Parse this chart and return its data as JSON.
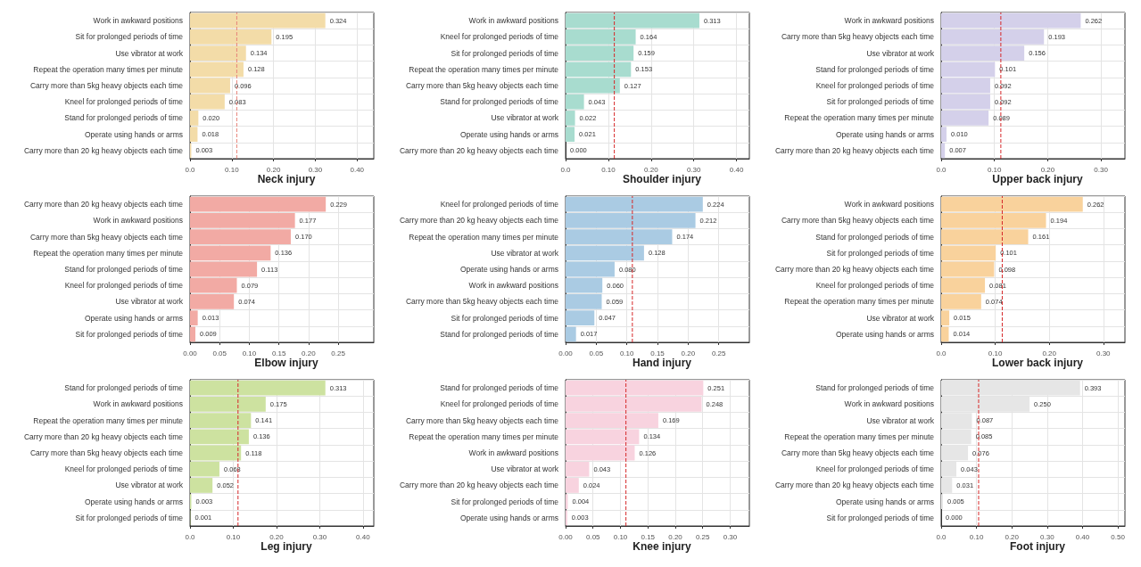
{
  "chart_data": [
    {
      "type": "bar",
      "orientation": "horizontal",
      "title": "Neck injury",
      "color": "#f3dca8",
      "grid": true,
      "categories": [
        "Work in awkward positions",
        "Sit for prolonged periods of time",
        "Use vibrator at work",
        "Repeat the operation many times per minute",
        "Carry more than 5kg heavy objects each time",
        "Kneel for prolonged periods of time",
        "Stand for prolonged periods of time",
        "Operate using hands or arms",
        "Carry more than 20 kg heavy objects each time"
      ],
      "values": [
        0.324,
        0.195,
        0.134,
        0.128,
        0.096,
        0.083,
        0.02,
        0.018,
        0.003
      ],
      "value_labels": [
        "0.324",
        "0.195",
        "0.134",
        "0.128",
        "0.096",
        "0.083",
        "0.020",
        "0.018",
        "0.003"
      ],
      "xlim": [
        0,
        0.44
      ],
      "xticks": [
        {
          "value": 0,
          "label": "0.0"
        },
        {
          "value": 0.1,
          "label": "0.10"
        },
        {
          "value": 0.2,
          "label": "0.20"
        },
        {
          "value": 0.3,
          "label": "0.30"
        },
        {
          "value": 0.4,
          "label": "0.40"
        }
      ],
      "ref_lines": [
        {
          "axis": "x",
          "value": 0.112,
          "color": "#e8837a",
          "line_style": "dashed"
        }
      ]
    },
    {
      "type": "bar",
      "orientation": "horizontal",
      "title": "Shoulder injury",
      "color": "#a8dccf",
      "grid": true,
      "categories": [
        "Work in awkward positions",
        "Kneel for prolonged periods of time",
        "Sit for prolonged periods of time",
        "Repeat the operation many times per minute",
        "Carry more than 5kg heavy objects each time",
        "Stand for prolonged periods of time",
        "Use vibrator at work",
        "Operate using hands or arms",
        "Carry more than 20 kg heavy objects each time"
      ],
      "values": [
        0.313,
        0.164,
        0.159,
        0.153,
        0.127,
        0.043,
        0.022,
        0.021,
        0.0
      ],
      "value_labels": [
        "0.313",
        "0.164",
        "0.159",
        "0.153",
        "0.127",
        "0.043",
        "0.022",
        "0.021",
        "0.000"
      ],
      "xlim": [
        0,
        0.43
      ],
      "xticks": [
        {
          "value": 0,
          "label": "0.0"
        },
        {
          "value": 0.1,
          "label": "0.10"
        },
        {
          "value": 0.2,
          "label": "0.20"
        },
        {
          "value": 0.3,
          "label": "0.30"
        },
        {
          "value": 0.4,
          "label": "0.40"
        }
      ],
      "ref_lines": [
        {
          "axis": "x",
          "value": 0.114,
          "color": "#d62728",
          "line_style": "dashed"
        }
      ]
    },
    {
      "type": "bar",
      "orientation": "horizontal",
      "title": "Upper back injury",
      "color": "#d4d0ea",
      "grid": true,
      "categories": [
        "Work in awkward positions",
        "Carry more than 5kg heavy objects each time",
        "Use vibrator at work",
        "Stand for prolonged periods of time",
        "Kneel for prolonged periods of time",
        "Sit for prolonged periods of time",
        "Repeat the operation many times per minute",
        "Operate using hands or arms",
        "Carry more than 20 kg heavy objects each time"
      ],
      "values": [
        0.262,
        0.193,
        0.156,
        0.101,
        0.092,
        0.092,
        0.089,
        0.01,
        0.007
      ],
      "value_labels": [
        "0.262",
        "0.193",
        "0.156",
        "0.101",
        "0.092",
        "0.092",
        "0.089",
        "0.010",
        "0.007"
      ],
      "xlim": [
        0,
        0.345
      ],
      "xticks": [
        {
          "value": 0,
          "label": "0.0"
        },
        {
          "value": 0.1,
          "label": "0.10"
        },
        {
          "value": 0.2,
          "label": "0.20"
        },
        {
          "value": 0.3,
          "label": "0.30"
        }
      ],
      "ref_lines": [
        {
          "axis": "x",
          "value": 0.112,
          "color": "#d62728",
          "line_style": "dashed"
        }
      ]
    },
    {
      "type": "bar",
      "orientation": "horizontal",
      "title": "Elbow injury",
      "color": "#f2aaa4",
      "grid": true,
      "categories": [
        "Carry more than 20 kg heavy objects each time",
        "Work in awkward positions",
        "Carry more than 5kg heavy objects each time",
        "Repeat the operation many times per minute",
        "Stand for prolonged periods of time",
        "Kneel for prolonged periods of time",
        "Use vibrator at work",
        "Operate using hands or arms",
        "Sit for prolonged periods of time"
      ],
      "values": [
        0.229,
        0.177,
        0.17,
        0.136,
        0.113,
        0.079,
        0.074,
        0.013,
        0.009
      ],
      "value_labels": [
        "0.229",
        "0.177",
        "0.170",
        "0.136",
        "0.113",
        "0.079",
        "0.074",
        "0.013",
        "0.009"
      ],
      "xlim": [
        0,
        0.31
      ],
      "xticks": [
        {
          "value": 0,
          "label": "0.00"
        },
        {
          "value": 0.05,
          "label": "0.05"
        },
        {
          "value": 0.1,
          "label": "0.10"
        },
        {
          "value": 0.15,
          "label": "0.15"
        },
        {
          "value": 0.2,
          "label": "0.20"
        },
        {
          "value": 0.25,
          "label": "0.25"
        }
      ]
    },
    {
      "type": "bar",
      "orientation": "horizontal",
      "title": "Hand injury",
      "color": "#aacbe3",
      "grid": true,
      "categories": [
        "Kneel for prolonged periods of time",
        "Carry more than 20 kg heavy objects each time",
        "Repeat the operation many times per minute",
        "Use vibrator at work",
        "Operate using hands or arms",
        "Work in awkward positions",
        "Carry more than 5kg heavy objects each time",
        "Sit for prolonged periods of time",
        "Stand for prolonged periods of time"
      ],
      "values": [
        0.224,
        0.212,
        0.174,
        0.128,
        0.08,
        0.06,
        0.059,
        0.047,
        0.017
      ],
      "value_labels": [
        "0.224",
        "0.212",
        "0.174",
        "0.128",
        "0.080",
        "0.060",
        "0.059",
        "0.047",
        "0.017"
      ],
      "xlim": [
        0,
        0.3
      ],
      "xticks": [
        {
          "value": 0,
          "label": "0.00"
        },
        {
          "value": 0.05,
          "label": "0.05"
        },
        {
          "value": 0.1,
          "label": "0.10"
        },
        {
          "value": 0.15,
          "label": "0.15"
        },
        {
          "value": 0.2,
          "label": "0.20"
        },
        {
          "value": 0.25,
          "label": "0.25"
        }
      ],
      "ref_lines": [
        {
          "axis": "x",
          "value": 0.109,
          "color": "#d62728",
          "line_style": "dashed"
        }
      ]
    },
    {
      "type": "bar",
      "orientation": "horizontal",
      "title": "Lower back injury",
      "color": "#f9d29c",
      "grid": true,
      "categories": [
        "Work in awkward positions",
        "Carry more than 5kg heavy objects each time",
        "Stand for prolonged periods of time",
        "Sit for prolonged periods of time",
        "Carry more than 20 kg heavy objects each time",
        "Kneel for prolonged periods of time",
        "Repeat the operation many times per minute",
        "Use vibrator at work",
        "Operate using hands or arms"
      ],
      "values": [
        0.262,
        0.194,
        0.161,
        0.101,
        0.098,
        0.081,
        0.074,
        0.015,
        0.014
      ],
      "value_labels": [
        "0.262",
        "0.194",
        "0.161",
        "0.101",
        "0.098",
        "0.081",
        "0.074",
        "0.015",
        "0.014"
      ],
      "xlim": [
        0,
        0.34
      ],
      "xticks": [
        {
          "value": 0,
          "label": "0.0"
        },
        {
          "value": 0.1,
          "label": "0.10"
        },
        {
          "value": 0.2,
          "label": "0.20"
        },
        {
          "value": 0.3,
          "label": "0.30"
        }
      ],
      "ref_lines": [
        {
          "axis": "x",
          "value": 0.113,
          "color": "#d62728",
          "line_style": "dashed"
        }
      ]
    },
    {
      "type": "bar",
      "orientation": "horizontal",
      "title": "Leg injury",
      "color": "#cde2a0",
      "grid": true,
      "categories": [
        "Stand for prolonged periods of time",
        "Work in awkward positions",
        "Repeat the operation many times per minute",
        "Carry more than 20 kg heavy objects each time",
        "Carry more than 5kg heavy objects each time",
        "Kneel for prolonged periods of time",
        "Use vibrator at work",
        "Operate using hands or arms",
        "Sit for prolonged periods of time"
      ],
      "values": [
        0.313,
        0.175,
        0.141,
        0.136,
        0.118,
        0.068,
        0.052,
        0.003,
        0.001
      ],
      "value_labels": [
        "0.313",
        "0.175",
        "0.141",
        "0.136",
        "0.118",
        "0.068",
        "0.052",
        "0.003",
        "0.001"
      ],
      "xlim": [
        0,
        0.425
      ],
      "xticks": [
        {
          "value": 0,
          "label": "0.0"
        },
        {
          "value": 0.1,
          "label": "0.10"
        },
        {
          "value": 0.2,
          "label": "0.20"
        },
        {
          "value": 0.3,
          "label": "0.30"
        },
        {
          "value": 0.4,
          "label": "0.40"
        }
      ],
      "ref_lines": [
        {
          "axis": "x",
          "value": 0.111,
          "color": "#d62728",
          "line_style": "dashed"
        }
      ]
    },
    {
      "type": "bar",
      "orientation": "horizontal",
      "title": "Knee injury",
      "color": "#f8d3df",
      "grid": true,
      "categories": [
        "Stand for prolonged periods of time",
        "Kneel for prolonged periods of time",
        "Carry more than 5kg heavy objects each time",
        "Repeat the operation many times per minute",
        "Work in awkward positions",
        "Use vibrator at work",
        "Carry more than 20 kg heavy objects each time",
        "Sit for prolonged periods of time",
        "Operate using hands or arms"
      ],
      "values": [
        0.251,
        0.248,
        0.169,
        0.134,
        0.126,
        0.043,
        0.024,
        0.004,
        0.003
      ],
      "value_labels": [
        "0.251",
        "0.248",
        "0.169",
        "0.134",
        "0.126",
        "0.043",
        "0.024",
        "0.004",
        "0.003"
      ],
      "xlim": [
        0,
        0.335
      ],
      "xticks": [
        {
          "value": 0,
          "label": "0.00"
        },
        {
          "value": 0.05,
          "label": "0.05"
        },
        {
          "value": 0.1,
          "label": "0.10"
        },
        {
          "value": 0.15,
          "label": "0.15"
        },
        {
          "value": 0.2,
          "label": "0.20"
        },
        {
          "value": 0.25,
          "label": "0.25"
        },
        {
          "value": 0.3,
          "label": "0.30"
        }
      ],
      "ref_lines": [
        {
          "axis": "x",
          "value": 0.11,
          "color": "#d62728",
          "line_style": "dashed"
        }
      ]
    },
    {
      "type": "bar",
      "orientation": "horizontal",
      "title": "Foot injury",
      "color": "#e6e6e6",
      "grid": true,
      "categories": [
        "Stand for prolonged periods of time",
        "Work in awkward positions",
        "Use vibrator at work",
        "Repeat the operation many times per minute",
        "Carry more than 5kg heavy objects each time",
        "Kneel for prolonged periods of time",
        "Carry more than 20 kg heavy objects each time",
        "Operate using hands or arms",
        "Sit for prolonged periods of time"
      ],
      "values": [
        0.393,
        0.25,
        0.087,
        0.085,
        0.076,
        0.043,
        0.031,
        0.005,
        0.0
      ],
      "value_labels": [
        "0.393",
        "0.250",
        "0.087",
        "0.085",
        "0.076",
        "0.043",
        "0.031",
        "0.005",
        "0.000"
      ],
      "xlim": [
        0,
        0.52
      ],
      "xticks": [
        {
          "value": 0,
          "label": "0.0"
        },
        {
          "value": 0.1,
          "label": "0.10"
        },
        {
          "value": 0.2,
          "label": "0.20"
        },
        {
          "value": 0.3,
          "label": "0.30"
        },
        {
          "value": 0.4,
          "label": "0.40"
        },
        {
          "value": 0.5,
          "label": "0.50"
        }
      ],
      "ref_lines": [
        {
          "axis": "x",
          "value": 0.106,
          "color": "#d62728",
          "line_style": "dashed"
        }
      ]
    }
  ]
}
